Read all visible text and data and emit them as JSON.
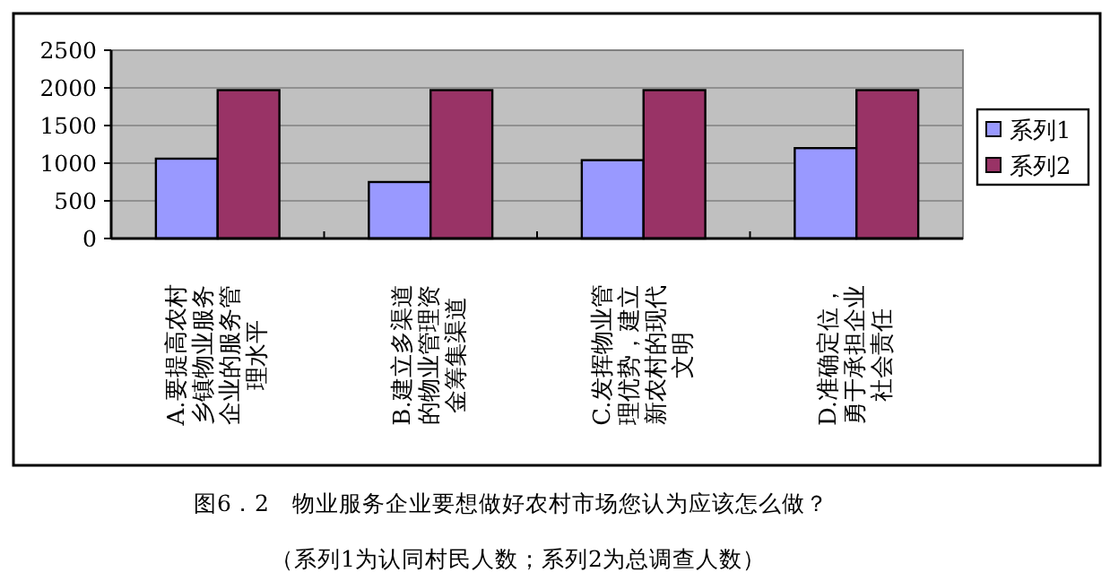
{
  "chart_data": {
    "type": "bar",
    "categories": [
      "A.要提高农村乡镇物业服务企业的服务管理水平",
      "B.建立多渠道的物业管理资金筹集渠道",
      "C.发挥物业管理优势，建立新农村的现代文明",
      "D.准确定位，勇于承担企业社会责任"
    ],
    "series": [
      {
        "name": "系列1",
        "color": "#9999ff",
        "values": [
          1060,
          750,
          1040,
          1200
        ]
      },
      {
        "name": "系列2",
        "color": "#993366",
        "values": [
          1970,
          1970,
          1970,
          1970
        ]
      }
    ],
    "ylim": [
      0,
      2500
    ],
    "yticks": [
      0,
      500,
      1000,
      1500,
      2000,
      2500
    ],
    "grid": "y",
    "legend": "right",
    "annotations": [
      "图6．2　物业服务企业要想做好农村市场您认为应该怎么做？",
      "（系列1为认同村民人数；系列2为总调查人数）"
    ]
  }
}
